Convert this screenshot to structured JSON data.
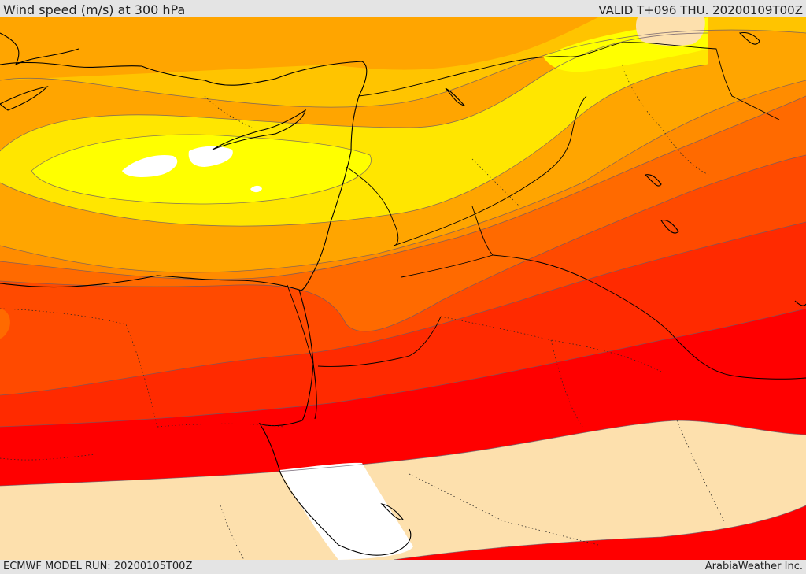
{
  "header": {
    "title": "Wind speed (m/s) at 300 hPa",
    "valid": "VALID T+096 THU. 20200109T00Z"
  },
  "footer": {
    "model_run": "ECMWF MODEL RUN: 20200105T00Z",
    "credit": "ArabiaWeather Inc."
  },
  "colors": {
    "white": "#ffffff",
    "wheat": "#fde0ad",
    "light_yellow": "#ffff00",
    "yellow": "#ffe600",
    "gold": "#ffc400",
    "orange_light": "#ffa500",
    "orange": "#ff8c00",
    "orange_dark": "#ff6a00",
    "red_orange": "#ff4a00",
    "red_light": "#ff2a00",
    "red": "#ff0000",
    "coast": "#000000",
    "contour": "#555555"
  }
}
